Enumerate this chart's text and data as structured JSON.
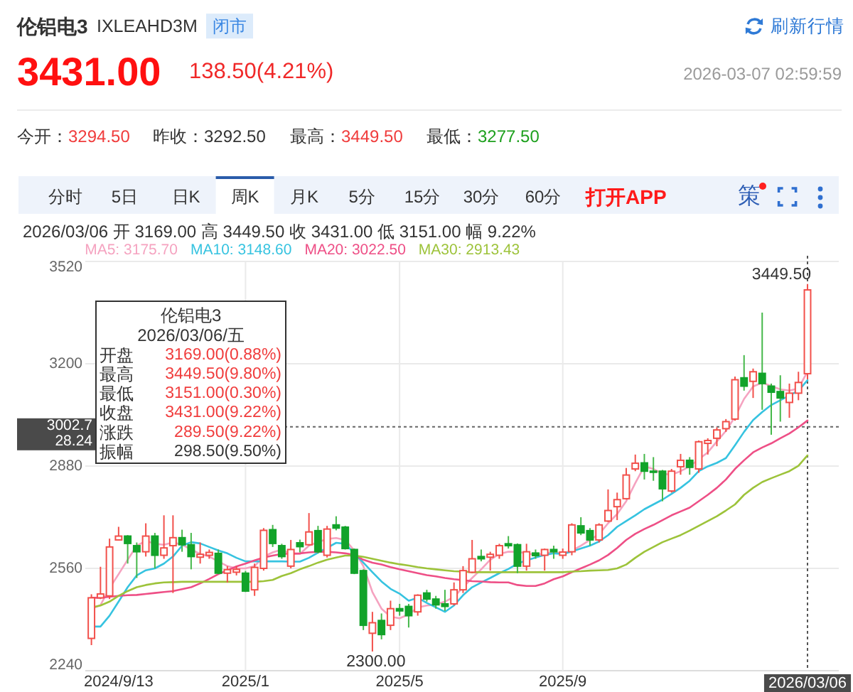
{
  "chart_data": {
    "type": "candlestick",
    "title": "伦铝电3",
    "subtitle": "IXLEAHD3M",
    "categories": [
      null,
      null,
      null,
      "2024/9/13",
      null,
      null,
      null,
      null,
      null,
      null,
      null,
      null,
      null,
      null,
      null,
      null,
      null,
      "2025/1",
      null,
      null,
      null,
      null,
      null,
      null,
      null,
      null,
      null,
      null,
      null,
      null,
      null,
      null,
      null,
      null,
      "2025/5",
      null,
      null,
      null,
      null,
      null,
      null,
      null,
      null,
      null,
      null,
      null,
      null,
      null,
      null,
      null,
      null,
      null,
      "2025/9",
      null,
      null,
      null,
      null,
      null,
      null,
      null,
      null,
      null,
      null,
      null,
      null,
      null,
      null,
      null,
      null,
      null,
      null,
      null,
      null,
      null,
      null,
      null,
      null,
      null,
      null,
      "2026/03/06"
    ],
    "ohlc": [
      [
        2341,
        2479,
        2320,
        2468
      ],
      [
        2468,
        2565,
        2464,
        2480
      ],
      [
        2474,
        2653,
        2464,
        2627
      ],
      [
        2649,
        2690,
        2648,
        2661
      ],
      [
        2661,
        2664,
        2575,
        2638
      ],
      [
        2631,
        2641,
        2530,
        2612
      ],
      [
        2612,
        2701,
        2597,
        2661
      ],
      [
        2661,
        2671,
        2560,
        2601
      ],
      [
        2601,
        2726,
        2590,
        2624
      ],
      [
        2631,
        2726,
        2483,
        2656
      ],
      [
        2656,
        2681,
        2612,
        2634
      ],
      [
        2634,
        2671,
        2557,
        2597
      ],
      [
        2595,
        2641,
        2575,
        2604
      ],
      [
        2601,
        2619,
        2590,
        2610
      ],
      [
        2607,
        2619,
        2542,
        2545
      ],
      [
        2545,
        2567,
        2516,
        2556
      ],
      [
        2548,
        2567,
        2538,
        2557
      ],
      [
        2545,
        2552,
        2486,
        2489
      ],
      [
        2493,
        2575,
        2474,
        2563
      ],
      [
        2560,
        2686,
        2553,
        2679
      ],
      [
        2681,
        2696,
        2627,
        2638
      ],
      [
        2631,
        2637,
        2590,
        2597
      ],
      [
        2567,
        2649,
        2560,
        2619
      ],
      [
        2640,
        2650,
        2610,
        2628
      ],
      [
        2634,
        2733,
        2631,
        2674
      ],
      [
        2678,
        2693,
        2607,
        2612
      ],
      [
        2601,
        2693,
        2594,
        2683
      ],
      [
        2696,
        2723,
        2679,
        2686
      ],
      [
        2689,
        2693,
        2619,
        2622
      ],
      [
        2619,
        2622,
        2542,
        2545
      ],
      [
        2553,
        2557,
        2367,
        2382
      ],
      [
        2357,
        2424,
        2300,
        2390
      ],
      [
        2397,
        2419,
        2338,
        2353
      ],
      [
        2382,
        2459,
        2367,
        2434
      ],
      [
        2434,
        2449,
        2412,
        2427
      ],
      [
        2441,
        2449,
        2375,
        2412
      ],
      [
        2424,
        2479,
        2412,
        2476
      ],
      [
        2483,
        2493,
        2456,
        2464
      ],
      [
        2464,
        2474,
        2434,
        2446
      ],
      [
        2449,
        2493,
        2427,
        2441
      ],
      [
        2449,
        2516,
        2444,
        2493
      ],
      [
        2493,
        2567,
        2483,
        2553
      ],
      [
        2548,
        2649,
        2545,
        2590
      ],
      [
        2597,
        2619,
        2582,
        2590
      ],
      [
        2595,
        2612,
        2553,
        2604
      ],
      [
        2601,
        2637,
        2590,
        2631
      ],
      [
        2637,
        2661,
        2622,
        2631
      ],
      [
        2634,
        2638,
        2545,
        2567
      ],
      [
        2567,
        2637,
        2553,
        2612
      ],
      [
        2608,
        2619,
        2590,
        2600
      ],
      [
        2601,
        2622,
        2553,
        2619
      ],
      [
        2619,
        2631,
        2590,
        2612
      ],
      [
        2601,
        2622,
        2590,
        2611
      ],
      [
        2612,
        2701,
        2601,
        2696
      ],
      [
        2693,
        2720,
        2664,
        2671
      ],
      [
        2678,
        2686,
        2631,
        2649
      ],
      [
        2649,
        2701,
        2641,
        2696
      ],
      [
        2708,
        2807,
        2705,
        2741
      ],
      [
        2753,
        2797,
        2711,
        2775
      ],
      [
        2778,
        2874,
        2775,
        2852
      ],
      [
        2871,
        2916,
        2864,
        2889
      ],
      [
        2890,
        2918,
        2838,
        2864
      ],
      [
        2864,
        2908,
        2834,
        2861
      ],
      [
        2864,
        2868,
        2770,
        2809
      ],
      [
        2802,
        2871,
        2797,
        2864
      ],
      [
        2878,
        2918,
        2853,
        2898
      ],
      [
        2898,
        2908,
        2853,
        2876
      ],
      [
        2871,
        2960,
        2859,
        2956
      ],
      [
        2951,
        2967,
        2916,
        2960
      ],
      [
        2967,
        3001,
        2942,
        2993
      ],
      [
        2997,
        3027,
        2987,
        3019
      ],
      [
        3027,
        3160,
        3022,
        3150
      ],
      [
        3156,
        3227,
        3116,
        3130
      ],
      [
        3145,
        3185,
        3093,
        3175
      ],
      [
        3170,
        3360,
        3056,
        3138
      ],
      [
        3130,
        3138,
        2978,
        3111
      ],
      [
        3113,
        3164,
        3019,
        3093
      ],
      [
        3079,
        3138,
        3031,
        3108
      ],
      [
        3108,
        3175,
        3086,
        3141.5
      ],
      [
        3169,
        3449.5,
        3151,
        3431
      ]
    ],
    "series": [
      {
        "name": "MA5: 3175.70",
        "type": "line",
        "color": "#f5a3c0",
        "values": [
          2434,
          2445,
          2498,
          2542,
          2587,
          2631,
          2646,
          2637,
          2634,
          2641,
          2634,
          2619,
          2605,
          2597,
          2582,
          2567,
          2560,
          2560,
          2567,
          2597,
          2610,
          2619,
          2605,
          2605,
          2631,
          2642,
          2652,
          2655,
          2649,
          2616,
          2567,
          2486,
          2434,
          2409,
          2404,
          2416,
          2438,
          2444,
          2447,
          2456,
          2471,
          2501,
          2530,
          2557,
          2587,
          2605,
          2612,
          2612,
          2607,
          2602,
          2607,
          2610,
          2607,
          2616,
          2631,
          2649,
          2667,
          2701,
          2730,
          2770,
          2827,
          2879,
          2871,
          2856,
          2853,
          2864,
          2879,
          2901,
          2923,
          2957,
          2990,
          3034,
          3090,
          3129,
          3141,
          3130,
          3120,
          3116,
          3123,
          3175.7
        ]
      },
      {
        "name": "MA10: 3148.60",
        "type": "line",
        "color": "#36c3e0",
        "values": [
          2378,
          2378,
          2412,
          2456,
          2501,
          2538,
          2554,
          2560,
          2575,
          2597,
          2631,
          2642,
          2638,
          2627,
          2616,
          2607,
          2593,
          2582,
          2582,
          2582,
          2582,
          2582,
          2581,
          2581,
          2593,
          2609,
          2624,
          2640,
          2637,
          2607,
          2578,
          2548,
          2519,
          2496,
          2481,
          2459,
          2468,
          2452,
          2438,
          2424,
          2444,
          2476,
          2501,
          2516,
          2530,
          2545,
          2558,
          2575,
          2585,
          2594,
          2602,
          2607,
          2605,
          2613,
          2622,
          2631,
          2644,
          2664,
          2690,
          2708,
          2726,
          2745,
          2760,
          2775,
          2793,
          2812,
          2834,
          2864,
          2879,
          2890,
          2905,
          2945,
          2987,
          3024,
          3049,
          3071,
          3086,
          3101,
          3116,
          3148.6
        ]
      },
      {
        "name": "MA20: 3022.50",
        "type": "line",
        "color": "#ee4f86",
        "values": [
          2468,
          2468,
          2471,
          2474,
          2476,
          2477,
          2480,
          2483,
          2486,
          2489,
          2495,
          2501,
          2513,
          2527,
          2542,
          2554,
          2566,
          2575,
          2585,
          2594,
          2600,
          2605,
          2606,
          2607,
          2610,
          2612,
          2612,
          2610,
          2607,
          2602,
          2587,
          2578,
          2572,
          2564,
          2557,
          2551,
          2545,
          2539,
          2535,
          2530,
          2526,
          2523,
          2520,
          2519,
          2517,
          2516,
          2516,
          2508,
          2505,
          2505,
          2513,
          2526,
          2535,
          2548,
          2560,
          2572,
          2585,
          2602,
          2624,
          2649,
          2668,
          2683,
          2696,
          2711,
          2726,
          2738,
          2750,
          2770,
          2790,
          2812,
          2838,
          2871,
          2898,
          2923,
          2938,
          2951,
          2967,
          2982,
          3001,
          3022.5
        ]
      },
      {
        "name": "MA30: 2913.43",
        "type": "line",
        "color": "#9dc33a",
        "values": [
          2438,
          2444,
          2456,
          2474,
          2489,
          2501,
          2508,
          2513,
          2516,
          2517,
          2518,
          2518,
          2518,
          2518,
          2518,
          2518,
          2518,
          2518,
          2518,
          2520,
          2524,
          2536,
          2545,
          2557,
          2567,
          2578,
          2587,
          2594,
          2600,
          2600,
          2596,
          2590,
          2584,
          2578,
          2573,
          2569,
          2564,
          2560,
          2557,
          2554,
          2551,
          2550,
          2548,
          2548,
          2548,
          2548,
          2548,
          2548,
          2548,
          2548,
          2548,
          2548,
          2548,
          2550,
          2551,
          2553,
          2554,
          2555,
          2560,
          2572,
          2593,
          2612,
          2627,
          2642,
          2653,
          2664,
          2678,
          2693,
          2708,
          2723,
          2741,
          2760,
          2790,
          2812,
          2830,
          2842,
          2853,
          2864,
          2881,
          2913.43
        ]
      }
    ],
    "ylim": [
      2240,
      3520
    ],
    "yticks": [
      2240,
      2560,
      2880,
      3200,
      3520
    ],
    "grid": true,
    "legend": "top left",
    "ref_lines": [
      {
        "axis": "x",
        "value": "2026/03/06"
      },
      {
        "axis": "y",
        "value": 3002.7,
        "label": "3002.7\n28.24"
      }
    ],
    "annotations": [
      "闭市",
      "刷新行情",
      "3431.00",
      "138.50(4.21%)",
      "2026-03-07 02:59:59",
      "今开：",
      "3294.50",
      "昨收：",
      "3292.50",
      "最高：",
      "3449.50",
      "最低：",
      "3277.50",
      "分时",
      "5日",
      "日K",
      "周K",
      "月K",
      "5分",
      "15分",
      "30分",
      "60分",
      "打开APP",
      "策",
      "2026/03/06 开 3169.00 高 3449.50 收 3431.00 低 3151.00 幅 9.22%",
      "伦铝电3",
      "2026/03/06/五",
      "开盘",
      "3169.00(0.88%)",
      "最高",
      "3449.50(9.80%)",
      "最低",
      "3151.00(0.30%)",
      "收盘",
      "3431.00(9.22%)",
      "涨跌",
      "289.50(9.22%)",
      "振幅",
      "298.50(9.50%)",
      {
        "text": "3449.50",
        "x": "2026/03/06",
        "y": 3449.5
      },
      {
        "text": "2300.00",
        "y": 2300
      }
    ]
  }
}
